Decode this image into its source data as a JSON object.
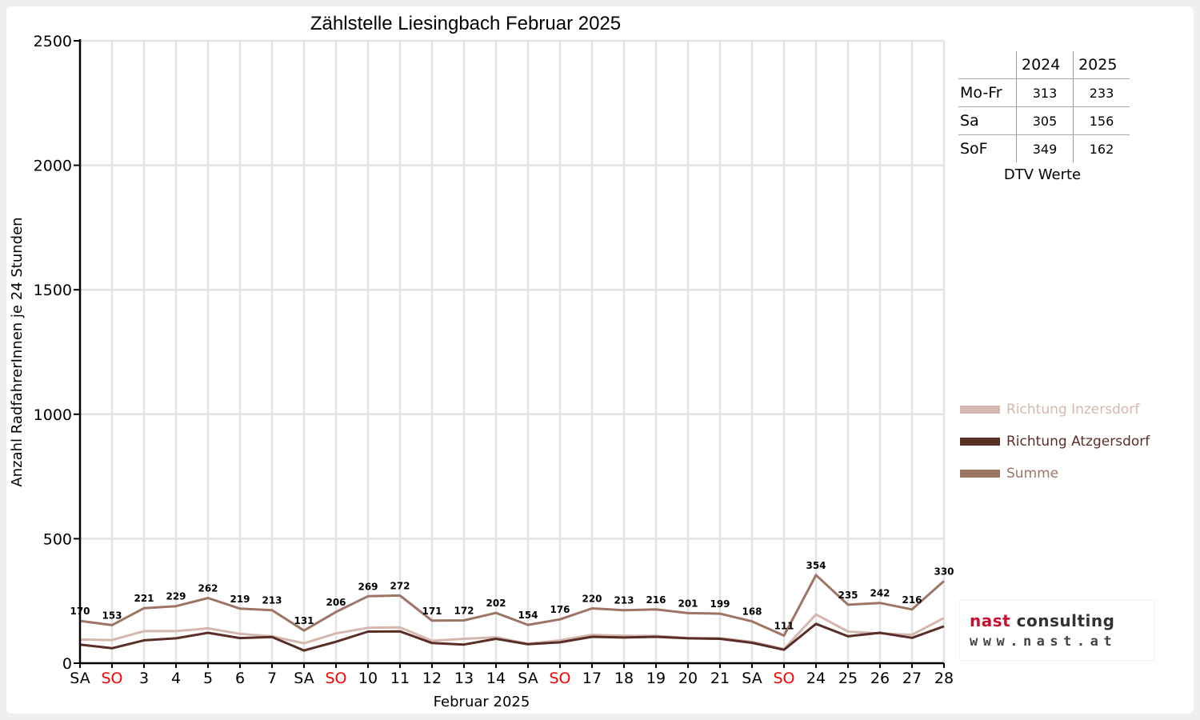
{
  "chart_data": {
    "type": "line",
    "title": "Zählstelle Liesingbach Februar 2025",
    "xlabel": "Februar 2025",
    "ylabel": "Anzahl RadfahrerInnen je 24 Stunden",
    "ylim": [
      0,
      2500
    ],
    "yticks": [
      0,
      500,
      1000,
      1500,
      2000,
      2500
    ],
    "grid": true,
    "legend_position": "right",
    "categories": [
      "SA",
      "SO",
      "3",
      "4",
      "5",
      "6",
      "7",
      "SA",
      "SO",
      "10",
      "11",
      "12",
      "13",
      "14",
      "SA",
      "SO",
      "17",
      "18",
      "19",
      "20",
      "21",
      "SA",
      "SO",
      "24",
      "25",
      "26",
      "27",
      "28"
    ],
    "red_categories": [
      "SO"
    ],
    "series": [
      {
        "name": "Richtung Inzersdorf",
        "color": "#d4b8ad",
        "values": [
          95,
          93,
          129,
          129,
          140,
          118,
          108,
          80,
          120,
          142,
          144,
          90,
          98,
          104,
          78,
          92,
          114,
          110,
          110,
          101,
          101,
          86,
          57,
          196,
          127,
          120,
          114,
          182
        ]
      },
      {
        "name": "Richtung Atzgersdorf",
        "color": "#5a2e26",
        "values": [
          75,
          60,
          92,
          100,
          122,
          101,
          105,
          51,
          86,
          127,
          128,
          81,
          75,
          98,
          76,
          84,
          106,
          103,
          106,
          100,
          98,
          82,
          54,
          158,
          108,
          122,
          102,
          148
        ]
      },
      {
        "name": "Summe",
        "color": "#9e7565",
        "values": [
          170,
          153,
          221,
          229,
          262,
          219,
          213,
          131,
          206,
          269,
          272,
          171,
          172,
          202,
          154,
          176,
          220,
          213,
          216,
          201,
          199,
          168,
          111,
          354,
          235,
          242,
          216,
          330
        ]
      }
    ],
    "data_labels_series": "Summe"
  },
  "dtv_table": {
    "headers": [
      "",
      "2024",
      "2025"
    ],
    "rows": [
      {
        "label": "Mo-Fr",
        "v2024": "313",
        "v2025": "233"
      },
      {
        "label": "Sa",
        "v2024": "305",
        "v2025": "156"
      },
      {
        "label": "SoF",
        "v2024": "349",
        "v2025": "162"
      }
    ],
    "caption": "DTV Werte"
  },
  "logo": {
    "line1": "nast consulting",
    "line1_accent": "nast",
    "line2": "www.nast.at",
    "accent_color": "#c8102e",
    "text_color": "#333333"
  },
  "colors": {
    "weekend_label": "#ff0000",
    "grid": "#e3e3e3",
    "axis": "#000000"
  }
}
